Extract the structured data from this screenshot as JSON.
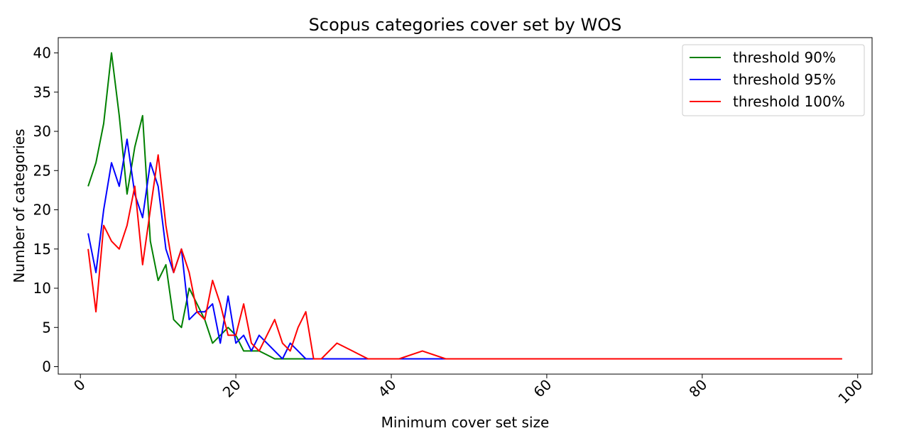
{
  "chart_data": {
    "type": "line",
    "title": "Scopus categories cover set by WOS",
    "xlabel": "Minimum cover set size",
    "ylabel": "Number of categories",
    "xlim": [
      -2.85,
      101.85
    ],
    "ylim": [
      -0.95,
      41.95
    ],
    "xticks": [
      0,
      20,
      40,
      60,
      80,
      100
    ],
    "xtick_labels": [
      "0",
      "20",
      "40",
      "60",
      "80",
      "100"
    ],
    "xtick_rotation": 45,
    "yticks": [
      0,
      5,
      10,
      15,
      20,
      25,
      30,
      35,
      40
    ],
    "ytick_labels": [
      "0",
      "5",
      "10",
      "15",
      "20",
      "25",
      "30",
      "35",
      "40"
    ],
    "grid": false,
    "legend_position": "top-right",
    "series": [
      {
        "name": "threshold 90%",
        "color": "#008000",
        "x": [
          1,
          2,
          3,
          4,
          5,
          6,
          7,
          8,
          9,
          10,
          11,
          12,
          13,
          14,
          15,
          16,
          17,
          18,
          19,
          20,
          21,
          22,
          23,
          24,
          25,
          26,
          27,
          28,
          29,
          30,
          31,
          53
        ],
        "y": [
          23,
          26,
          31,
          40,
          32,
          22,
          28,
          32,
          16,
          11,
          13,
          6,
          5,
          10,
          8,
          6,
          3,
          4,
          5,
          4,
          2,
          2,
          2,
          1.5,
          1,
          1,
          1,
          1,
          1,
          1,
          1,
          1
        ]
      },
      {
        "name": "threshold 95%",
        "color": "#0000ff",
        "x": [
          1,
          2,
          3,
          4,
          5,
          6,
          7,
          8,
          9,
          10,
          11,
          12,
          13,
          14,
          15,
          16,
          17,
          18,
          19,
          20,
          21,
          22,
          23,
          24,
          25,
          26,
          27,
          28,
          29,
          30,
          31,
          35,
          40,
          45,
          47,
          50,
          60,
          69
        ],
        "y": [
          17,
          12,
          20,
          26,
          23,
          29,
          22,
          19,
          26,
          23,
          15,
          12,
          15,
          6,
          7,
          7,
          8,
          3,
          9,
          3,
          4,
          2,
          4,
          3,
          2,
          1,
          3,
          2,
          1,
          1,
          1,
          1,
          1,
          1,
          1,
          1,
          1,
          1
        ]
      },
      {
        "name": "threshold 100%",
        "color": "#ff0000",
        "x": [
          1,
          2,
          3,
          4,
          5,
          6,
          7,
          8,
          9,
          10,
          11,
          12,
          13,
          14,
          15,
          16,
          17,
          18,
          19,
          20,
          21,
          22,
          23,
          25,
          26,
          27,
          28,
          29,
          30,
          31,
          33,
          35,
          37,
          41,
          44,
          47,
          50,
          60,
          70,
          80,
          90,
          98
        ],
        "y": [
          15,
          7,
          18,
          16,
          15,
          18,
          23,
          13,
          20,
          27,
          18,
          12,
          15,
          12,
          7,
          6,
          11,
          8,
          4,
          4,
          8,
          3,
          2,
          6,
          3,
          2,
          5,
          7,
          1,
          1,
          3,
          2,
          1,
          1,
          2,
          1,
          1,
          1,
          1,
          1,
          1,
          1
        ]
      }
    ]
  }
}
